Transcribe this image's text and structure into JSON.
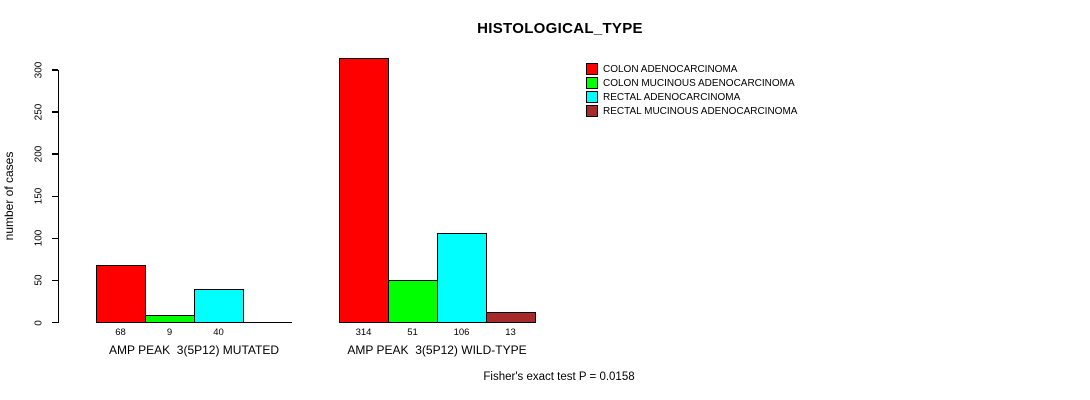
{
  "chart_data": {
    "type": "bar",
    "title": "HISTOLOGICAL_TYPE",
    "ylabel": "number of cases",
    "xlabel": "",
    "ylim": [
      0,
      300
    ],
    "yticks": [
      0,
      50,
      100,
      150,
      200,
      250,
      300
    ],
    "grid": false,
    "legend_position": "top-right",
    "categories": [
      "AMP PEAK  3(5P12) MUTATED",
      "AMP PEAK  3(5P12) WILD-TYPE"
    ],
    "series": [
      {
        "name": "COLON ADENOCARCINOMA",
        "color": "#ff0000",
        "values": [
          68,
          314
        ]
      },
      {
        "name": "COLON MUCINOUS ADENOCARCINOMA",
        "color": "#00ff00",
        "values": [
          9,
          51
        ]
      },
      {
        "name": "RECTAL ADENOCARCINOMA",
        "color": "#00ffff",
        "values": [
          40,
          106
        ]
      },
      {
        "name": "RECTAL MUCINOUS ADENOCARCINOMA",
        "color": "#a52a2a",
        "values": [
          0,
          13
        ]
      }
    ],
    "bar_labels_visible": true,
    "annotation": "Fisher's exact test P = 0.0158"
  }
}
